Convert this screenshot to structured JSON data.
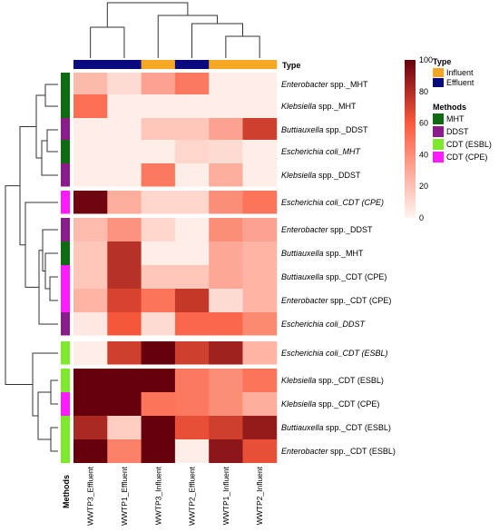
{
  "chart_data": {
    "type": "heatmap",
    "title": "",
    "xlabel": "",
    "ylabel": "",
    "columns": [
      "WWTP3_Effluent",
      "WWTP1_Effluent",
      "WWTP3_Influent",
      "WWTP2_Effluent",
      "WWTP1_Influent",
      "WWTP2_Influent"
    ],
    "column_type": [
      "Effluent",
      "Effluent",
      "Influent",
      "Effluent",
      "Influent",
      "Influent"
    ],
    "rows": [
      {
        "organism": "Enterobacter",
        "suffix": " spp._MHT",
        "method": "MHT",
        "values": [
          23,
          10,
          32,
          48,
          3,
          3
        ]
      },
      {
        "organism": "Klebsiella",
        "suffix": " spp._MHT",
        "method": "MHT",
        "values": [
          52,
          3,
          3,
          3,
          3,
          3
        ]
      },
      {
        "organism": "Buttiauxella",
        "suffix": " spp._DDST",
        "method": "DDST",
        "values": [
          3,
          3,
          18,
          18,
          32,
          72
        ]
      },
      {
        "organism": "Escherichia coli",
        "suffix": "_MHT",
        "method": "MHT",
        "values": [
          3,
          3,
          3,
          12,
          10,
          3
        ]
      },
      {
        "organism": "Klebsiella",
        "suffix": " spp._DDST",
        "method": "DDST",
        "values": [
          3,
          3,
          48,
          3,
          28,
          3
        ]
      },
      {
        "organism": "Escherichia coli",
        "suffix": "_CDT (CPE)",
        "method": "CDT (CPE)",
        "values": [
          98,
          28,
          12,
          12,
          40,
          50
        ]
      },
      {
        "organism": "Enterobacter",
        "suffix": " spp._DDST",
        "method": "DDST",
        "values": [
          22,
          38,
          12,
          3,
          40,
          32
        ]
      },
      {
        "organism": "Buttiauxella",
        "suffix": " spp._MHT",
        "method": "MHT",
        "values": [
          18,
          78,
          3,
          3,
          30,
          25
        ]
      },
      {
        "organism": "Buttiauxella",
        "suffix": " spp._CDT (CPE)",
        "method": "CDT (CPE)",
        "values": [
          18,
          78,
          18,
          18,
          30,
          25
        ]
      },
      {
        "organism": "Enterobacter",
        "suffix": " spp._CDT (CPE)",
        "method": "CDT (CPE)",
        "values": [
          25,
          70,
          50,
          75,
          10,
          25
        ]
      },
      {
        "organism": "Escherichia coli",
        "suffix": "_DDST",
        "method": "DDST",
        "values": [
          5,
          62,
          10,
          55,
          55,
          42
        ]
      },
      {
        "organism": "Escherichia coli",
        "suffix": "_CDT (ESBL)",
        "method": "CDT (ESBL)",
        "values": [
          3,
          72,
          100,
          72,
          85,
          25
        ]
      },
      {
        "organism": "Klebsiella",
        "suffix": " spp._CDT (ESBL)",
        "method": "CDT (ESBL)",
        "values": [
          100,
          100,
          100,
          48,
          40,
          50
        ]
      },
      {
        "organism": "Klebsiella",
        "suffix": " spp._CDT (CPE)",
        "method": "CDT (CPE)",
        "values": [
          100,
          100,
          50,
          48,
          40,
          28
        ]
      },
      {
        "organism": "Buttiauxella",
        "suffix": " spp._CDT (ESBL)",
        "method": "CDT (ESBL)",
        "values": [
          82,
          15,
          100,
          65,
          72,
          88
        ]
      },
      {
        "organism": "Enterobacter",
        "suffix": " spp._CDT (ESBL)",
        "method": "CDT (ESBL)",
        "values": [
          100,
          45,
          100,
          3,
          90,
          65
        ]
      }
    ],
    "color_scale": {
      "min": 0,
      "max": 100,
      "ticks": [
        0,
        20,
        40,
        60,
        80,
        100
      ],
      "low_color": "#fff5f0",
      "mid_color": "#fb5a3c",
      "high_color": "#67000d"
    },
    "annotation_row_label": "Type",
    "annotation_col_label": "Methods",
    "legend": {
      "type_title": "Type",
      "type_entries": [
        {
          "label": "Influent",
          "color": "#f5a623"
        },
        {
          "label": "Effluent",
          "color": "#0a0a80"
        }
      ],
      "methods_title": "Methods",
      "methods_entries": [
        {
          "label": "MHT",
          "color": "#0e6b12"
        },
        {
          "label": "DDST",
          "color": "#8b1a8b"
        },
        {
          "label": "CDT (ESBL)",
          "color": "#7ee82b"
        },
        {
          "label": "CDT (CPE)",
          "color": "#ff1aff"
        }
      ]
    },
    "row_gaps_after": [
      4,
      5,
      10,
      11
    ],
    "grid": false
  }
}
